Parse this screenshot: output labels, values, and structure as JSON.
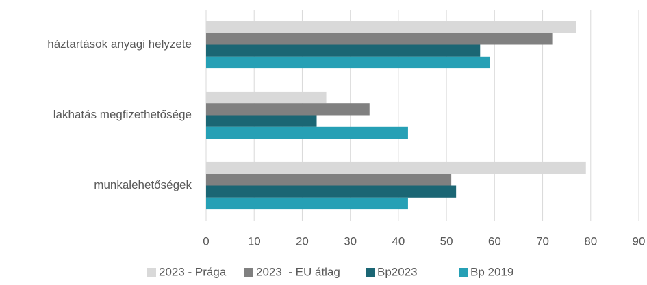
{
  "chart_data": {
    "type": "hbar",
    "categories": [
      "háztartások anyagi helyzete",
      "lakhatás megfizethetősége",
      "munkalehetőségek"
    ],
    "series": [
      {
        "name": "2023 - Prága",
        "color": "#d9d9d9",
        "values": [
          77,
          25,
          79
        ]
      },
      {
        "name": "2023  - EU átlag",
        "color": "#808080",
        "values": [
          72,
          34,
          51
        ]
      },
      {
        "name": "Bp2023",
        "color": "#1b6674",
        "values": [
          57,
          23,
          52
        ]
      },
      {
        "name": "Bp 2019",
        "color": "#26a0b5",
        "values": [
          59,
          42,
          42
        ]
      }
    ],
    "xlim": [
      0,
      90
    ],
    "xticks": [
      0,
      10,
      20,
      30,
      40,
      50,
      60,
      70,
      80,
      90
    ],
    "grid": true,
    "legend": "bottom"
  }
}
